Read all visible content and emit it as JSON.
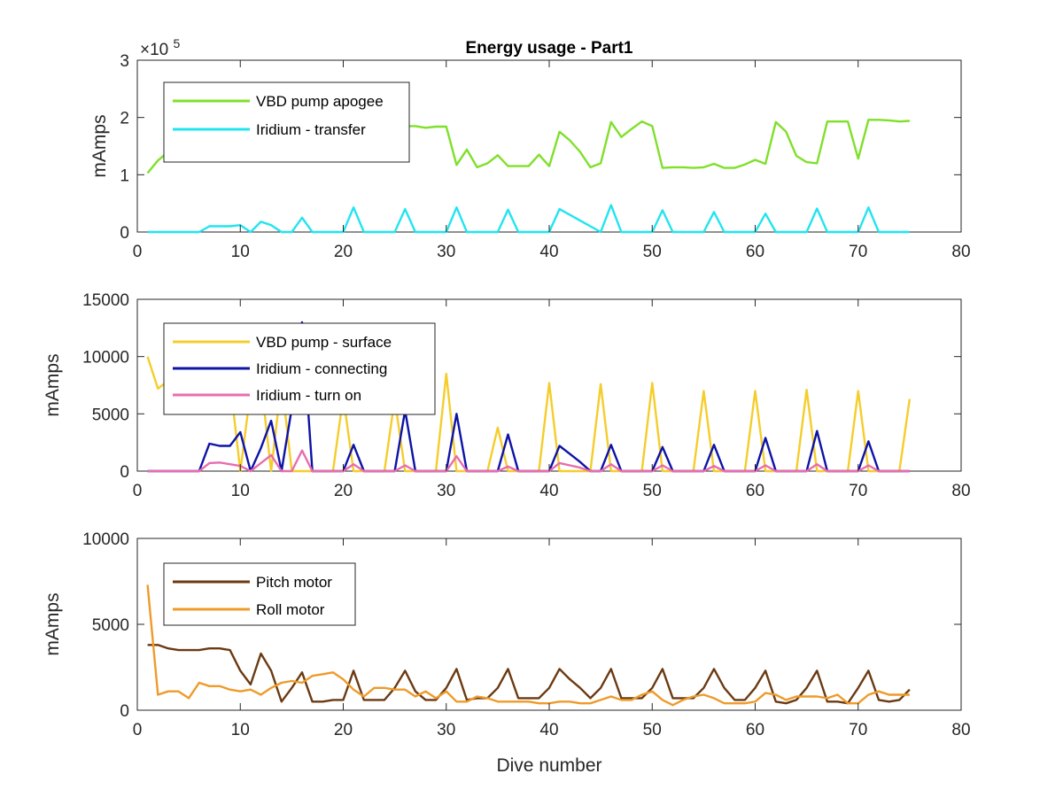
{
  "chart_data": [
    {
      "type": "line",
      "title": "Energy usage - Part1",
      "xlabel": "",
      "ylabel": "mAmps",
      "y_multiplier": "×10^5",
      "xlim": [
        0,
        80
      ],
      "ylim": [
        0,
        3
      ],
      "xticks": [
        "0",
        "10",
        "20",
        "30",
        "40",
        "50",
        "60",
        "70",
        "80"
      ],
      "yticks": [
        "0",
        "1",
        "2",
        "3"
      ],
      "exponent_label": {
        "base": "×10",
        "exp": "5"
      },
      "grid": false,
      "legend": "top-left",
      "series": [
        {
          "name": "VBD pump apogee",
          "color": "#7fe02a",
          "x": [
            1,
            2,
            3,
            4,
            5,
            6,
            7,
            8,
            9,
            10,
            11,
            12,
            13,
            14,
            15,
            16,
            17,
            18,
            19,
            20,
            21,
            22,
            23,
            24,
            25,
            26,
            27,
            28,
            29,
            30,
            31,
            32,
            33,
            34,
            35,
            36,
            37,
            38,
            39,
            40,
            41,
            42,
            43,
            44,
            45,
            46,
            47,
            48,
            49,
            50,
            51,
            52,
            53,
            54,
            55,
            56,
            57,
            58,
            59,
            60,
            61,
            62,
            63,
            64,
            65,
            66,
            67,
            68,
            69,
            70,
            71,
            72,
            73,
            74,
            75
          ],
          "values": [
            1.03,
            1.25,
            1.4,
            1.55,
            1.7,
            1.8,
            1.85,
            1.87,
            1.85,
            1.85,
            1.84,
            1.85,
            1.85,
            1.85,
            1.85,
            1.85,
            1.85,
            1.85,
            1.85,
            1.85,
            1.85,
            1.85,
            1.85,
            1.85,
            1.85,
            1.85,
            1.85,
            1.82,
            1.84,
            1.84,
            1.17,
            1.44,
            1.13,
            1.2,
            1.34,
            1.15,
            1.15,
            1.15,
            1.35,
            1.15,
            1.75,
            1.6,
            1.4,
            1.13,
            1.2,
            1.92,
            1.66,
            1.8,
            1.93,
            1.85,
            1.12,
            1.13,
            1.13,
            1.12,
            1.13,
            1.19,
            1.12,
            1.12,
            1.18,
            1.26,
            1.19,
            1.92,
            1.75,
            1.33,
            1.22,
            1.2,
            1.93,
            1.93,
            1.93,
            1.28,
            1.96,
            1.96,
            1.95,
            1.93,
            1.94
          ]
        },
        {
          "name": "Iridium - transfer",
          "color": "#22e4f0",
          "x": [
            1,
            2,
            3,
            4,
            5,
            6,
            7,
            8,
            9,
            10,
            11,
            12,
            13,
            14,
            15,
            16,
            17,
            18,
            19,
            20,
            21,
            22,
            23,
            24,
            25,
            26,
            27,
            28,
            29,
            30,
            31,
            32,
            33,
            34,
            35,
            36,
            37,
            38,
            39,
            40,
            41,
            42,
            43,
            44,
            45,
            46,
            47,
            48,
            49,
            50,
            51,
            52,
            53,
            54,
            55,
            56,
            57,
            58,
            59,
            60,
            61,
            62,
            63,
            64,
            65,
            66,
            67,
            68,
            69,
            70,
            71,
            72,
            73,
            74,
            75
          ],
          "values": [
            0,
            0,
            0,
            0,
            0,
            0,
            0.1,
            0.1,
            0.1,
            0.12,
            0,
            0.18,
            0.12,
            0,
            0,
            0.25,
            0,
            0,
            0,
            0,
            0.43,
            0,
            0,
            0,
            0,
            0.4,
            0,
            0,
            0,
            0,
            0.43,
            0,
            0,
            0,
            0,
            0.39,
            0,
            0,
            0,
            0,
            0.4,
            0.3,
            0.2,
            0.1,
            0,
            0.47,
            0,
            0,
            0,
            0,
            0.38,
            0,
            0,
            0,
            0,
            0.35,
            0,
            0,
            0,
            0,
            0.32,
            0,
            0,
            0,
            0,
            0.41,
            0,
            0,
            0,
            0,
            0.43,
            0,
            0,
            0,
            0
          ]
        }
      ]
    },
    {
      "type": "line",
      "title": "",
      "xlabel": "",
      "ylabel": "mAmps",
      "xlim": [
        0,
        80
      ],
      "ylim": [
        0,
        15000
      ],
      "xticks": [
        "0",
        "10",
        "20",
        "30",
        "40",
        "50",
        "60",
        "70",
        "80"
      ],
      "yticks": [
        "0",
        "5000",
        "10000",
        "15000"
      ],
      "grid": false,
      "legend": "top-left",
      "series": [
        {
          "name": "VBD pump - surface",
          "color": "#f5cd2b",
          "x": [
            1,
            2,
            3,
            4,
            5,
            6,
            7,
            8,
            9,
            10,
            11,
            12,
            13,
            14,
            15,
            16,
            17,
            18,
            19,
            20,
            21,
            22,
            23,
            24,
            25,
            26,
            27,
            28,
            29,
            30,
            31,
            32,
            33,
            34,
            35,
            36,
            37,
            38,
            39,
            40,
            41,
            42,
            43,
            44,
            45,
            46,
            47,
            48,
            49,
            50,
            51,
            52,
            53,
            54,
            55,
            56,
            57,
            58,
            59,
            60,
            61,
            62,
            63,
            64,
            65,
            66,
            67,
            68,
            69,
            70,
            71,
            72,
            73,
            74,
            75
          ],
          "values": [
            10000,
            7200,
            7900,
            7900,
            7900,
            7900,
            7900,
            7900,
            7900,
            0,
            7000,
            7900,
            0,
            7900,
            0,
            0,
            0,
            0,
            0,
            6500,
            0,
            0,
            0,
            0,
            6300,
            0,
            0,
            0,
            0,
            8500,
            0,
            0,
            0,
            0,
            3800,
            0,
            0,
            0,
            0,
            7700,
            0,
            0,
            0,
            0,
            7600,
            0,
            0,
            0,
            0,
            7700,
            0,
            0,
            0,
            0,
            7000,
            0,
            0,
            0,
            0,
            7000,
            0,
            0,
            0,
            0,
            7100,
            0,
            0,
            0,
            0,
            7000,
            0,
            0,
            0,
            0,
            6300
          ]
        },
        {
          "name": "Iridium - connecting",
          "color": "#0d13a6",
          "x": [
            1,
            2,
            3,
            4,
            5,
            6,
            7,
            8,
            9,
            10,
            11,
            12,
            13,
            14,
            15,
            16,
            17,
            18,
            19,
            20,
            21,
            22,
            23,
            24,
            25,
            26,
            27,
            28,
            29,
            30,
            31,
            32,
            33,
            34,
            35,
            36,
            37,
            38,
            39,
            40,
            41,
            42,
            43,
            44,
            45,
            46,
            47,
            48,
            49,
            50,
            51,
            52,
            53,
            54,
            55,
            56,
            57,
            58,
            59,
            60,
            61,
            62,
            63,
            64,
            65,
            66,
            67,
            68,
            69,
            70,
            71,
            72,
            73,
            74,
            75
          ],
          "values": [
            0,
            0,
            0,
            0,
            0,
            0,
            2400,
            2200,
            2200,
            3400,
            0,
            2000,
            4400,
            0,
            5500,
            13000,
            0,
            0,
            0,
            0,
            2300,
            0,
            0,
            0,
            0,
            5300,
            0,
            0,
            0,
            0,
            5000,
            0,
            0,
            0,
            0,
            3200,
            0,
            0,
            0,
            0,
            2200,
            1500,
            800,
            0,
            0,
            2300,
            0,
            0,
            0,
            0,
            2100,
            0,
            0,
            0,
            0,
            2300,
            0,
            0,
            0,
            0,
            2900,
            0,
            0,
            0,
            0,
            3500,
            0,
            0,
            0,
            0,
            2600,
            0,
            0,
            0,
            0
          ]
        },
        {
          "name": "Iridium - turn on",
          "color": "#e86db0",
          "x": [
            1,
            2,
            3,
            4,
            5,
            6,
            7,
            8,
            9,
            10,
            11,
            12,
            13,
            14,
            15,
            16,
            17,
            18,
            19,
            20,
            21,
            22,
            23,
            24,
            25,
            26,
            27,
            28,
            29,
            30,
            31,
            32,
            33,
            34,
            35,
            36,
            37,
            38,
            39,
            40,
            41,
            42,
            43,
            44,
            45,
            46,
            47,
            48,
            49,
            50,
            51,
            52,
            53,
            54,
            55,
            56,
            57,
            58,
            59,
            60,
            61,
            62,
            63,
            64,
            65,
            66,
            67,
            68,
            69,
            70,
            71,
            72,
            73,
            74,
            75
          ],
          "values": [
            0,
            0,
            0,
            0,
            0,
            0,
            700,
            750,
            600,
            450,
            0,
            700,
            1400,
            0,
            0,
            1800,
            0,
            0,
            0,
            0,
            600,
            0,
            0,
            0,
            0,
            500,
            0,
            0,
            0,
            0,
            1300,
            0,
            0,
            0,
            0,
            400,
            0,
            0,
            0,
            0,
            700,
            500,
            300,
            0,
            0,
            600,
            0,
            0,
            0,
            0,
            500,
            0,
            0,
            0,
            0,
            450,
            0,
            0,
            0,
            0,
            500,
            0,
            0,
            0,
            0,
            600,
            0,
            0,
            0,
            0,
            500,
            0,
            0,
            0,
            0
          ]
        }
      ]
    },
    {
      "type": "line",
      "title": "",
      "xlabel": "Dive number",
      "ylabel": "mAmps",
      "xlim": [
        0,
        80
      ],
      "ylim": [
        0,
        10000
      ],
      "xticks": [
        "0",
        "10",
        "20",
        "30",
        "40",
        "50",
        "60",
        "70",
        "80"
      ],
      "yticks": [
        "0",
        "5000",
        "10000"
      ],
      "grid": false,
      "legend": "top-left",
      "series": [
        {
          "name": "Pitch motor",
          "color": "#6b3a12",
          "x": [
            1,
            2,
            3,
            4,
            5,
            6,
            7,
            8,
            9,
            10,
            11,
            12,
            13,
            14,
            15,
            16,
            17,
            18,
            19,
            20,
            21,
            22,
            23,
            24,
            25,
            26,
            27,
            28,
            29,
            30,
            31,
            32,
            33,
            34,
            35,
            36,
            37,
            38,
            39,
            40,
            41,
            42,
            43,
            44,
            45,
            46,
            47,
            48,
            49,
            50,
            51,
            52,
            53,
            54,
            55,
            56,
            57,
            58,
            59,
            60,
            61,
            62,
            63,
            64,
            65,
            66,
            67,
            68,
            69,
            70,
            71,
            72,
            73,
            74,
            75
          ],
          "values": [
            3800,
            3800,
            3600,
            3500,
            3500,
            3500,
            3600,
            3600,
            3500,
            2300,
            1500,
            3300,
            2300,
            500,
            1300,
            2200,
            500,
            500,
            600,
            600,
            2300,
            600,
            600,
            600,
            1300,
            2300,
            1100,
            600,
            600,
            1300,
            2400,
            600,
            700,
            700,
            1300,
            2400,
            700,
            700,
            700,
            1300,
            2400,
            1800,
            1300,
            700,
            1300,
            2400,
            700,
            700,
            700,
            1300,
            2400,
            700,
            700,
            700,
            1300,
            2400,
            1300,
            600,
            600,
            1300,
            2300,
            500,
            400,
            600,
            1300,
            2300,
            500,
            500,
            400,
            1300,
            2300,
            600,
            500,
            600,
            1200
          ]
        },
        {
          "name": "Roll motor",
          "color": "#ee9b2a",
          "x": [
            1,
            2,
            3,
            4,
            5,
            6,
            7,
            8,
            9,
            10,
            11,
            12,
            13,
            14,
            15,
            16,
            17,
            18,
            19,
            20,
            21,
            22,
            23,
            24,
            25,
            26,
            27,
            28,
            29,
            30,
            31,
            32,
            33,
            34,
            35,
            36,
            37,
            38,
            39,
            40,
            41,
            42,
            43,
            44,
            45,
            46,
            47,
            48,
            49,
            50,
            51,
            52,
            53,
            54,
            55,
            56,
            57,
            58,
            59,
            60,
            61,
            62,
            63,
            64,
            65,
            66,
            67,
            68,
            69,
            70,
            71,
            72,
            73,
            74,
            75
          ],
          "values": [
            7300,
            900,
            1100,
            1100,
            700,
            1600,
            1400,
            1400,
            1200,
            1100,
            1200,
            900,
            1300,
            1600,
            1700,
            1600,
            2000,
            2100,
            2200,
            1800,
            1200,
            800,
            1300,
            1300,
            1200,
            1200,
            800,
            1100,
            700,
            1100,
            500,
            500,
            800,
            700,
            500,
            500,
            500,
            500,
            400,
            400,
            500,
            500,
            400,
            400,
            600,
            800,
            600,
            600,
            900,
            1100,
            600,
            300,
            600,
            800,
            900,
            700,
            400,
            400,
            400,
            500,
            1000,
            900,
            600,
            800,
            800,
            800,
            700,
            900,
            400,
            400,
            900,
            1100,
            900,
            900,
            900
          ]
        }
      ]
    }
  ]
}
